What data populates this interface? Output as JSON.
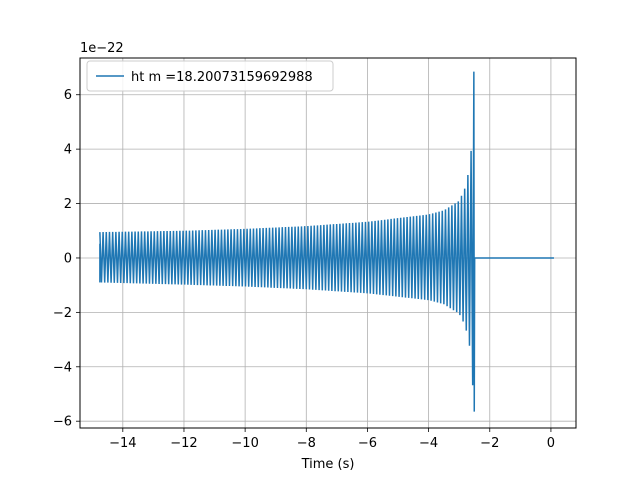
{
  "chart_data": {
    "type": "line",
    "xlabel": "Time (s)",
    "ylabel": "",
    "y_scale_label": "1e−22",
    "xlim": [
      -15.4,
      0.82
    ],
    "ylim": [
      -6.25,
      7.35
    ],
    "x_ticks": [
      -14,
      -12,
      -10,
      -8,
      -6,
      -4,
      -2,
      0
    ],
    "x_tick_labels": [
      "−14",
      "−12",
      "−10",
      "−8",
      "−6",
      "−4",
      "−2",
      "0"
    ],
    "y_ticks": [
      -6,
      -4,
      -2,
      0,
      2,
      4,
      6
    ],
    "y_tick_labels": [
      "−6",
      "−4",
      "−2",
      "0",
      "2",
      "4",
      "6"
    ],
    "grid": true,
    "legend": {
      "location": "upper left"
    },
    "series": [
      {
        "name": "ht m =18.20073159692988",
        "color": "#1f77b4",
        "start_time": -14.75,
        "merger_time": -2.52,
        "end_time": 0.1,
        "initial_amplitude": 0.95,
        "envelope_upper": [
          [
            -14.75,
            0.95
          ],
          [
            -12,
            1.0
          ],
          [
            -10,
            1.07
          ],
          [
            -8,
            1.17
          ],
          [
            -6,
            1.33
          ],
          [
            -4,
            1.6
          ],
          [
            -3.5,
            1.75
          ],
          [
            -3,
            2.1
          ],
          [
            -2.8,
            2.6
          ],
          [
            -2.65,
            3.4
          ],
          [
            -2.57,
            4.5
          ],
          [
            -2.53,
            6.85
          ]
        ],
        "envelope_lower": [
          [
            -14.75,
            -0.9
          ],
          [
            -12,
            -0.98
          ],
          [
            -10,
            -1.05
          ],
          [
            -8,
            -1.15
          ],
          [
            -6,
            -1.3
          ],
          [
            -4,
            -1.55
          ],
          [
            -3.5,
            -1.7
          ],
          [
            -3,
            -2.05
          ],
          [
            -2.8,
            -2.5
          ],
          [
            -2.65,
            -3.3
          ],
          [
            -2.57,
            -4.3
          ],
          [
            -2.53,
            -5.65
          ]
        ],
        "post_merger_value": 0.0
      }
    ]
  }
}
